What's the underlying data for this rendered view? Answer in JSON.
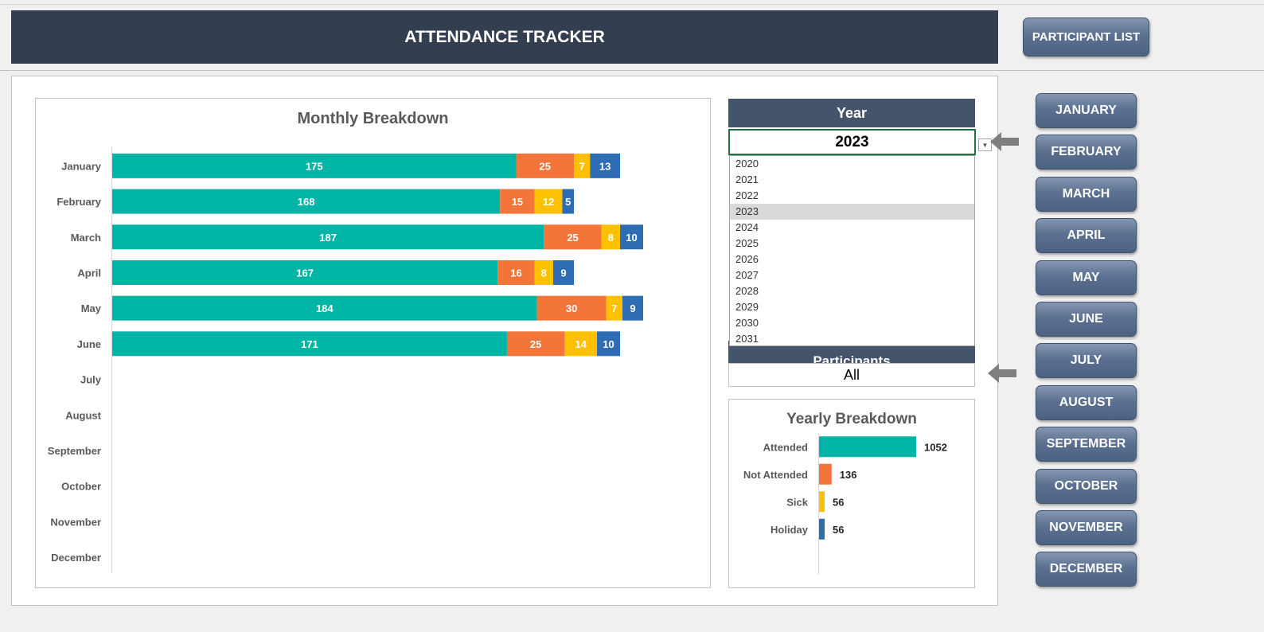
{
  "header": {
    "title": "ATTENDANCE TRACKER",
    "participant_list_label": "PARTICIPANT LIST"
  },
  "month_buttons": [
    "JANUARY",
    "FEBRUARY",
    "MARCH",
    "APRIL",
    "MAY",
    "JUNE",
    "JULY",
    "AUGUST",
    "SEPTEMBER",
    "OCTOBER",
    "NOVEMBER",
    "DECEMBER"
  ],
  "filters": {
    "year_label": "Year",
    "year_value": "2023",
    "year_options": [
      "2020",
      "2021",
      "2022",
      "2023",
      "2024",
      "2025",
      "2026",
      "2027",
      "2028",
      "2029",
      "2030",
      "2031"
    ],
    "participants_label": "Participants",
    "participants_value": "All"
  },
  "colors": {
    "attended": "#00b5a6",
    "not_attended": "#f47539",
    "sick": "#ffc000",
    "holiday": "#2e6db4"
  },
  "chart_data": [
    {
      "type": "bar",
      "orientation": "horizontal",
      "stacked": true,
      "title": "Monthly Breakdown",
      "categories": [
        "January",
        "February",
        "March",
        "April",
        "May",
        "June",
        "July",
        "August",
        "September",
        "October",
        "November",
        "December"
      ],
      "series": [
        {
          "values": [
            175,
            168,
            187,
            167,
            184,
            171,
            null,
            null,
            null,
            null,
            null,
            null
          ]
        },
        {
          "values": [
            25,
            15,
            25,
            16,
            30,
            25,
            null,
            null,
            null,
            null,
            null,
            null
          ]
        },
        {
          "values": [
            7,
            12,
            8,
            8,
            7,
            14,
            null,
            null,
            null,
            null,
            null,
            null
          ]
        },
        {
          "values": [
            13,
            5,
            10,
            9,
            9,
            10,
            null,
            null,
            null,
            null,
            null,
            null
          ]
        }
      ],
      "xlim": [
        0,
        230
      ],
      "grid": false
    },
    {
      "type": "bar",
      "orientation": "horizontal",
      "title": "Yearly Breakdown",
      "categories": [
        "Attended",
        "Not Attended",
        "Sick",
        "Holiday"
      ],
      "values": [
        1052,
        136,
        56,
        56
      ],
      "xlim": [
        0,
        1052
      ],
      "grid": false
    }
  ]
}
